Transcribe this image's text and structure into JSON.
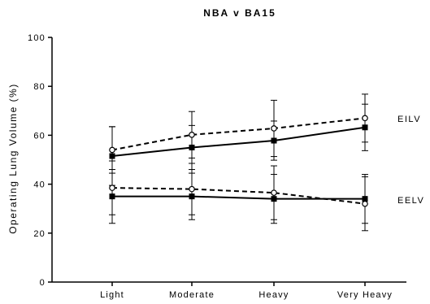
{
  "chart_data": {
    "type": "line",
    "title": "NBA v BA15",
    "xlabel": "",
    "ylabel": "Operating Lung Volume (%)",
    "categories": [
      "Light",
      "Moderate",
      "Heavy",
      "Very Heavy"
    ],
    "ylim": [
      0,
      100
    ],
    "yticks": [
      0,
      20,
      40,
      60,
      80,
      100
    ],
    "grid": false,
    "legend": "none",
    "annotations": [
      "EILV",
      "EELV"
    ],
    "series": [
      {
        "group": "EILV",
        "style": "solid",
        "marker": "filled-square",
        "color": "#000000",
        "values": [
          51.5,
          55,
          57.8,
          63.2
        ],
        "error": [
          12,
          9,
          8,
          9.5
        ]
      },
      {
        "group": "EILV",
        "style": "dashed",
        "marker": "open-circle",
        "color": "#000000",
        "values": [
          54,
          60.2,
          62.8,
          67
        ],
        "error": [
          9.5,
          9.5,
          11.5,
          9.8
        ]
      },
      {
        "group": "EELV",
        "style": "solid",
        "marker": "filled-square",
        "color": "#000000",
        "values": [
          35,
          35,
          34,
          34
        ],
        "error": [
          11,
          9.5,
          10,
          10
        ]
      },
      {
        "group": "EELV",
        "style": "dashed",
        "marker": "open-circle",
        "color": "#000000",
        "values": [
          38.5,
          38,
          36.5,
          32
        ],
        "error": [
          11,
          10.5,
          11,
          11
        ]
      }
    ]
  }
}
